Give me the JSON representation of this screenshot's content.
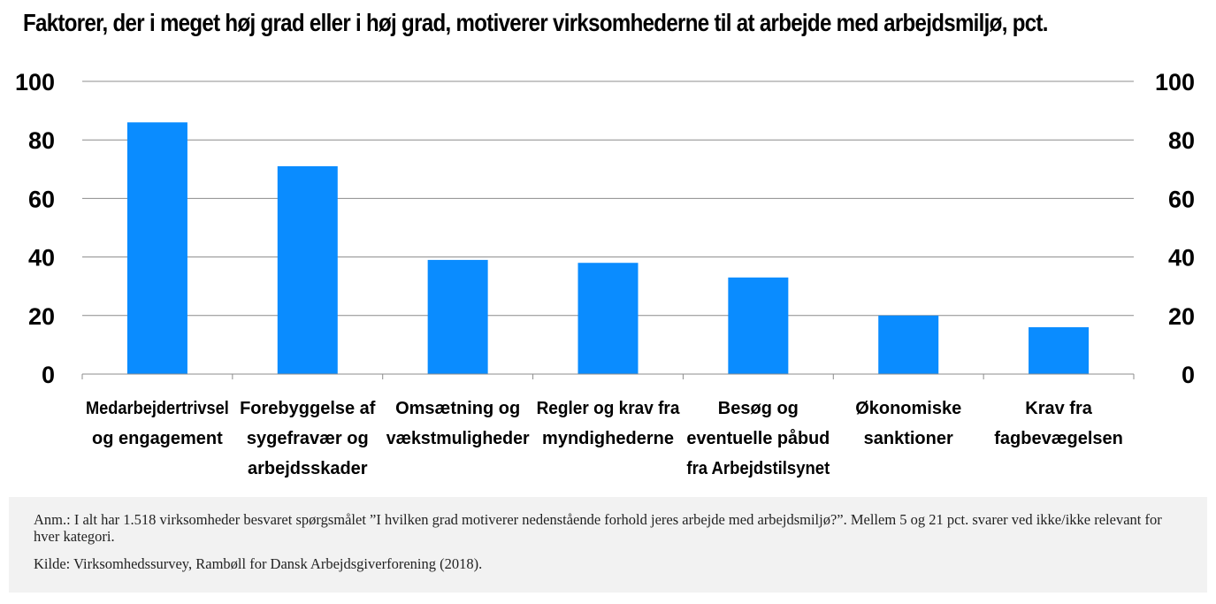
{
  "chart_data": {
    "type": "bar",
    "title": "Faktorer, der i meget høj grad eller i høj grad, motiverer virksomhederne til at arbejde med arbejdsmiljø, pct.",
    "categories": [
      [
        "Medarbejdertrivsel",
        "og engagement"
      ],
      [
        "Forebyggelse af",
        "sygefravær og",
        "arbejdsskader"
      ],
      [
        "Omsætning og",
        "vækstmuligheder"
      ],
      [
        "Regler og krav fra",
        "myndighederne"
      ],
      [
        "Besøg og",
        "eventuelle påbud",
        "fra Arbejdstilsynet"
      ],
      [
        "Økonomiske",
        "sanktioner"
      ],
      [
        "Krav fra",
        "fagbevægelsen"
      ]
    ],
    "values": [
      86,
      71,
      39,
      38,
      33,
      20,
      16
    ],
    "ylim": [
      0,
      100
    ],
    "yticks": [
      "0",
      "20",
      "40",
      "60",
      "80",
      "100"
    ],
    "grid": true,
    "bar_color": "#0a8cff"
  },
  "note": {
    "anm": "Anm.: I alt har 1.518 virksomheder besvaret spørgsmålet ”I hvilken grad motiverer nedenstående forhold jeres arbejde med arbejdsmiljø?”. Mellem 5 og 21 pct. svarer ved ikke/ikke relevant for hver kategori.",
    "kilde": "Kilde: Virksomhedssurvey, Rambøll for Dansk Arbejdsgiverforening (2018)."
  }
}
